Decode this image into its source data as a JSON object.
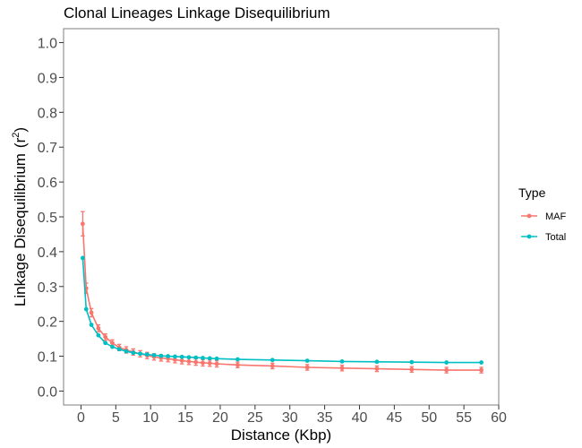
{
  "chart_data": {
    "type": "line",
    "title": "Clonal Lineages Linkage Disequilibrium",
    "xlabel": "Distance (Kbp)",
    "ylabel": "Linkage Disequilibrium",
    "ylabel_symbol": "r",
    "ylabel_superscript": "2",
    "xlim": [
      -2.5,
      60
    ],
    "ylim": [
      -0.04,
      1.04
    ],
    "x_ticks": [
      0,
      5,
      10,
      15,
      20,
      25,
      30,
      35,
      40,
      45,
      50,
      55,
      60
    ],
    "x_tick_labels": [
      "0",
      "5",
      "10",
      "15",
      "20",
      "25",
      "30",
      "35",
      "40",
      "45",
      "50",
      "55",
      "60"
    ],
    "y_ticks": [
      0.0,
      0.1,
      0.2,
      0.3,
      0.4,
      0.5,
      0.6,
      0.7,
      0.8,
      0.9,
      1.0
    ],
    "y_tick_labels": [
      "0.0",
      "0.1",
      "0.2",
      "0.3",
      "0.4",
      "0.5",
      "0.6",
      "0.7",
      "0.8",
      "0.9",
      "1.0"
    ],
    "grid": false,
    "legend": {
      "title": "Type",
      "placement": "right"
    },
    "series": [
      {
        "name": "MAF",
        "color": "#F8766D",
        "x": [
          0.25,
          0.75,
          1.5,
          2.5,
          3.5,
          4.5,
          5.5,
          6.5,
          7.5,
          8.5,
          9.5,
          10.5,
          11.5,
          12.5,
          13.5,
          14.5,
          15.5,
          16.5,
          17.5,
          18.5,
          19.5,
          22.5,
          27.5,
          32.5,
          37.5,
          42.5,
          47.5,
          52.5,
          57.5
        ],
        "y": [
          0.48,
          0.295,
          0.225,
          0.18,
          0.155,
          0.138,
          0.125,
          0.118,
          0.112,
          0.107,
          0.102,
          0.098,
          0.095,
          0.093,
          0.09,
          0.087,
          0.085,
          0.083,
          0.081,
          0.08,
          0.078,
          0.075,
          0.072,
          0.068,
          0.066,
          0.064,
          0.062,
          0.06,
          0.06
        ],
        "err": [
          0.035,
          0.015,
          0.012,
          0.01,
          0.009,
          0.009,
          0.009,
          0.009,
          0.009,
          0.009,
          0.009,
          0.009,
          0.009,
          0.009,
          0.009,
          0.009,
          0.009,
          0.009,
          0.009,
          0.009,
          0.009,
          0.008,
          0.008,
          0.008,
          0.008,
          0.008,
          0.008,
          0.008,
          0.008
        ]
      },
      {
        "name": "Total",
        "color": "#00BFC4",
        "x": [
          0.25,
          0.75,
          1.5,
          2.5,
          3.5,
          4.5,
          5.5,
          6.5,
          7.5,
          8.5,
          9.5,
          10.5,
          11.5,
          12.5,
          13.5,
          14.5,
          15.5,
          16.5,
          17.5,
          18.5,
          19.5,
          22.5,
          27.5,
          32.5,
          37.5,
          42.5,
          47.5,
          52.5,
          57.5
        ],
        "y": [
          0.382,
          0.235,
          0.19,
          0.16,
          0.138,
          0.127,
          0.12,
          0.114,
          0.11,
          0.107,
          0.105,
          0.103,
          0.101,
          0.1,
          0.099,
          0.098,
          0.097,
          0.096,
          0.095,
          0.094,
          0.093,
          0.091,
          0.089,
          0.087,
          0.085,
          0.084,
          0.083,
          0.082,
          0.082
        ]
      }
    ]
  }
}
